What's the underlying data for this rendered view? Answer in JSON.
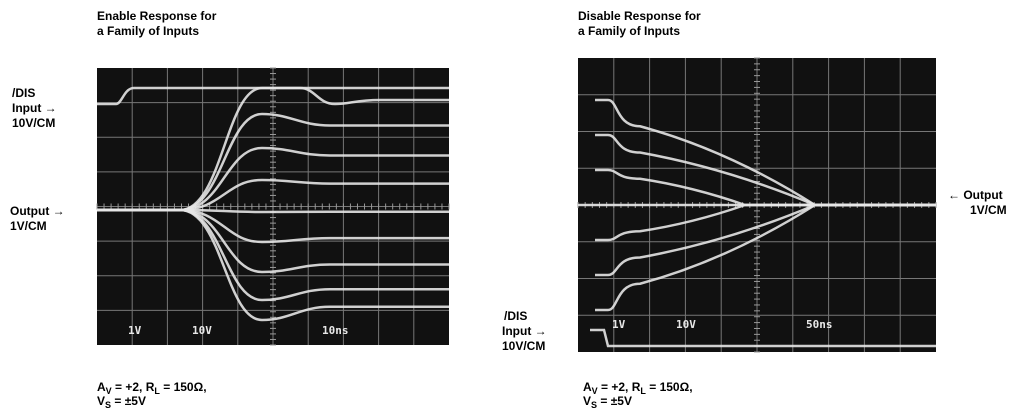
{
  "left": {
    "title": [
      "Enable Response for",
      "a Family of Inputs"
    ],
    "input_label": [
      "/DIS",
      "Input →",
      "10V/CM"
    ],
    "output_label": [
      "Output →",
      "1V/CM"
    ],
    "scope_labels": [
      "1V",
      "10V",
      "10ns"
    ],
    "caption": {
      "line1": [
        "A",
        "V",
        " = +2, R",
        "L",
        " = 150Ω,"
      ],
      "line2": [
        "V",
        "S",
        " = ±5V"
      ]
    }
  },
  "right": {
    "title": [
      "Disable Response for",
      "a Family of Inputs"
    ],
    "input_label": [
      "/DIS",
      "Input →",
      "10V/CM"
    ],
    "output_label": [
      "← Output",
      "1V/CM"
    ],
    "scope_labels": [
      "1V",
      "10V",
      "50ns"
    ],
    "caption": {
      "line1": [
        "A",
        "V",
        " = +2, R",
        "L",
        " = 150Ω,"
      ],
      "line2": [
        "V",
        "S",
        " = ±5V"
      ]
    }
  }
}
